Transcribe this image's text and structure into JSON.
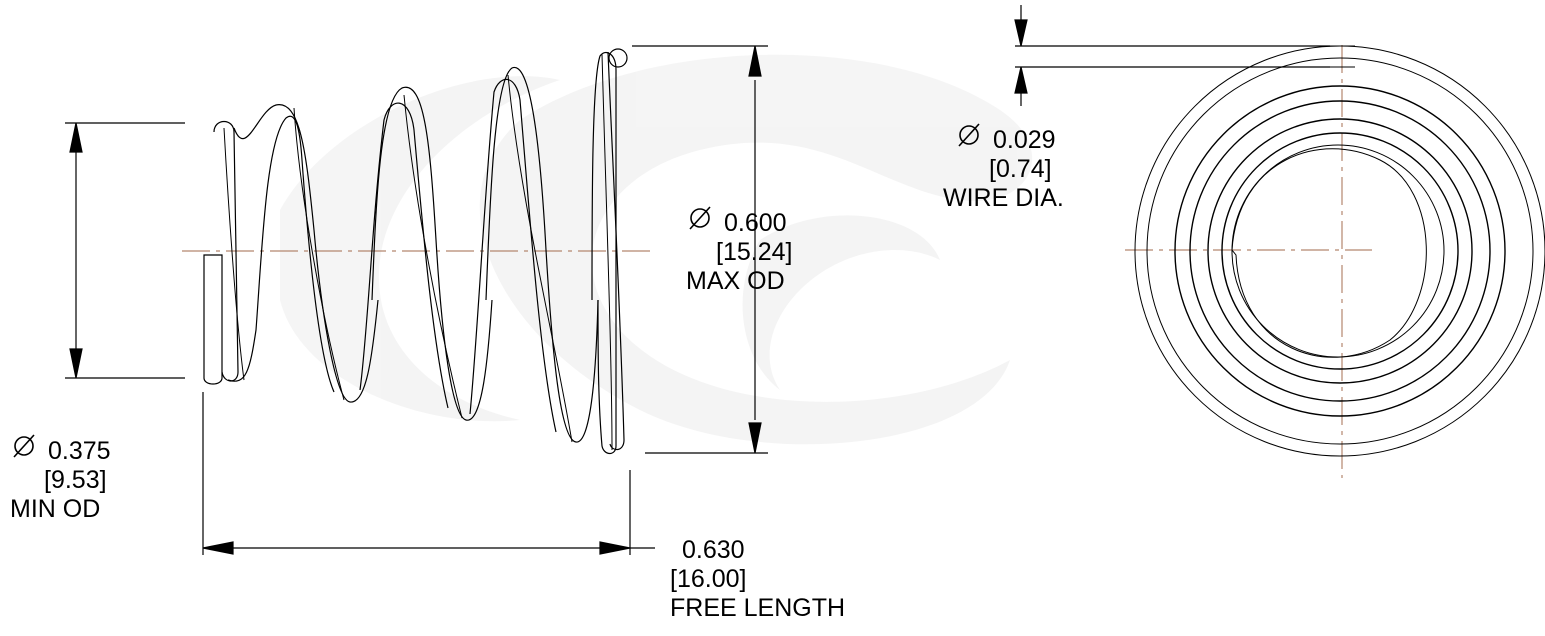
{
  "colors": {
    "line": "#000000",
    "centerline": "#b5876f",
    "watermark": "#e6e6e6",
    "background": "#ffffff"
  },
  "icons": {
    "diameter": "diameter-symbol-icon"
  },
  "dimensions": {
    "min_od": {
      "value": "0.375",
      "metric": "[9.53]",
      "label": "MIN OD"
    },
    "max_od": {
      "value": "0.600",
      "metric": "[15.24]",
      "label": "MAX OD"
    },
    "free_length": {
      "value": "0.630",
      "metric": "[16.00]",
      "label": "FREE LENGTH"
    },
    "wire_dia": {
      "value": "0.029",
      "metric": "[0.74]",
      "label": "WIRE DIA."
    }
  }
}
